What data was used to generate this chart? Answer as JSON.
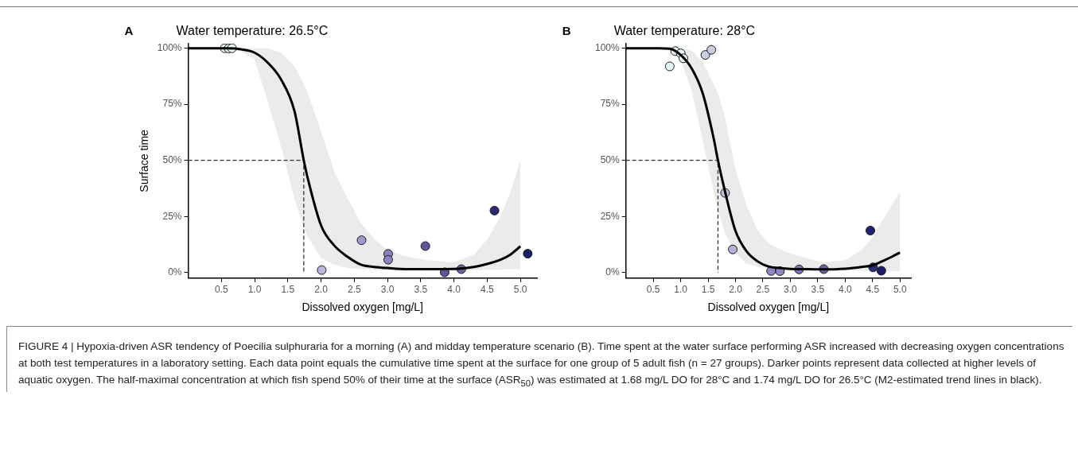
{
  "chart_data": [
    {
      "type": "scatter",
      "title": "Water temperature: 26.5°C",
      "xlabel": "Dissolved oxygen [mg/L]",
      "ylabel": "Surface time",
      "annotations": [
        "A",
        "FIGURE 4 | Hypoxia-driven ASR tendency of Poecilia sulphuraria for a morning (A) and midday temperature scenario (B). Time spent at the water surface performing ASR increased with decreasing oxygen concentrations at both test temperatures in a laboratory setting. Each data point equals the cumulative time spent at the surface for one group of 5 adult fish (n = 27 groups). Darker points represent data collected at higher levels of aquatic oxygen. The half-maximal concentration at which fish spend 50% of their time at the surface (ASR$_{50}$) was estimated at 1.68 mg/L DO for 28°C and 1.74 mg/L DO for 26.5°C (M2-estimated trend lines in black)."
      ],
      "xlim": [
        0,
        5.25
      ],
      "xticks": [
        0.5,
        {
          "value": 1,
          "label": "1.0"
        },
        1.5,
        {
          "value": 2,
          "label": "2.0"
        },
        2.5,
        {
          "value": 3,
          "label": "3.0"
        },
        3.5,
        {
          "value": 4,
          "label": "4.0"
        },
        4.5,
        {
          "value": 5,
          "label": "5.0"
        }
      ],
      "ylim": [
        -2.5,
        102
      ],
      "yticks": [
        {
          "value": 0,
          "label": "0%"
        },
        {
          "value": 25,
          "label": "25%"
        },
        {
          "value": 50,
          "label": "50%"
        },
        {
          "value": 75,
          "label": "75%"
        },
        {
          "value": 100,
          "label": "100%"
        }
      ],
      "grid": false,
      "legend": false,
      "marker": "circle",
      "series": [
        {
          "type": "line",
          "color": "#000000",
          "marker": "none",
          "x": [
            0,
            0.3,
            0.6,
            0.8,
            1,
            1.2,
            1.4,
            1.6,
            1.74,
            1.8,
            2,
            2.2,
            2.4,
            2.6,
            2.8,
            3,
            3.3,
            3.6,
            4,
            4.3,
            4.5,
            4.7,
            4.85,
            5
          ],
          "values": [
            100,
            100,
            100,
            99.5,
            98,
            93.5,
            86,
            72,
            50,
            42,
            21,
            12,
            7,
            3.5,
            2.5,
            2,
            1.5,
            1.5,
            1.6,
            2.5,
            3.8,
            5.7,
            8,
            11.7
          ],
          "lower": [
            100,
            100,
            100,
            98.5,
            95,
            76,
            56,
            33,
            20,
            16,
            6.5,
            3.5,
            2,
            1.5,
            1.2,
            1,
            1,
            1,
            1,
            1.1,
            1.2,
            1.3,
            1.4,
            1.5
          ],
          "upper": [
            100,
            100,
            100,
            100,
            100,
            100,
            98,
            92,
            84,
            80,
            63,
            45,
            33,
            22,
            15,
            10,
            7,
            5.5,
            4.5,
            8,
            14.7,
            25,
            36,
            50
          ]
        },
        {
          "type": "line",
          "color": "#333333",
          "marker": "none",
          "line_style": "dashed",
          "x": [
            0,
            1.74,
            1.74
          ],
          "values": [
            50,
            50,
            0
          ]
        },
        {
          "type": "scatter",
          "x": [
            0.55,
            0.61,
            0.66,
            2.01,
            2.61,
            3.01,
            3.01,
            3.57,
            3.86,
            4.11,
            4.61,
            5.11
          ],
          "values": [
            100,
            99.9,
            100,
            1.1,
            14.4,
            8.3,
            5.7,
            11.8,
            0.1,
            1.5,
            27.6,
            8.4
          ],
          "colors": [
            "#e6f5f7",
            "#e6f5f7",
            "#e6f5f7",
            "#b9b7dc",
            "#9e98cb",
            "#8a83bf",
            "#8a83bf",
            "#5f5799",
            "#5f5799",
            "#6a63a8",
            "#2b2a78",
            "#1c1f66"
          ]
        }
      ]
    },
    {
      "type": "scatter",
      "title": "Water temperature: 28°C",
      "xlabel": "Dissolved oxygen [mg/L]",
      "annotations": [
        "B"
      ],
      "xlim": [
        0,
        5.2
      ],
      "xticks": [
        0.5,
        {
          "value": 1,
          "label": "1.0"
        },
        1.5,
        {
          "value": 2,
          "label": "2.0"
        },
        2.5,
        {
          "value": 3,
          "label": "3.0"
        },
        3.5,
        {
          "value": 4,
          "label": "4.0"
        },
        4.5,
        {
          "value": 5,
          "label": "5.0"
        }
      ],
      "ylim": [
        -2.5,
        102
      ],
      "yticks": [
        {
          "value": 0,
          "label": "0%"
        },
        {
          "value": 25,
          "label": "25%"
        },
        {
          "value": 50,
          "label": "50%"
        },
        {
          "value": 75,
          "label": "75%"
        },
        {
          "value": 100,
          "label": "100%"
        }
      ],
      "grid": false,
      "legend": false,
      "marker": "circle",
      "series": [
        {
          "type": "line",
          "color": "#000000",
          "marker": "none",
          "x": [
            0,
            0.3,
            0.6,
            0.8,
            1,
            1.2,
            1.4,
            1.6,
            1.68,
            1.8,
            2,
            2.2,
            2.4,
            2.6,
            2.8,
            3,
            3.3,
            3.6,
            4,
            4.3,
            4.5,
            4.7,
            4.85,
            5
          ],
          "values": [
            100,
            100,
            100,
            99.8,
            97,
            91,
            80,
            60,
            50,
            37,
            18.5,
            9.5,
            5,
            2.7,
            2,
            1.6,
            1.5,
            1.4,
            1.7,
            2.5,
            3.2,
            5.3,
            7,
            8.9
          ],
          "lower": [
            100,
            100,
            100,
            99.5,
            95,
            81,
            59,
            36,
            28,
            18,
            8.5,
            4,
            2.5,
            1.8,
            1.3,
            1,
            1,
            1,
            0.9,
            0.8,
            0.7,
            0.6,
            0.6,
            0.5
          ],
          "upper": [
            100,
            100,
            100,
            100,
            100,
            99,
            94,
            84,
            80,
            70,
            46,
            30,
            19,
            13,
            10.5,
            8.5,
            6.5,
            4.5,
            5.5,
            10,
            15.8,
            24,
            30,
            36
          ]
        },
        {
          "type": "line",
          "color": "#333333",
          "marker": "none",
          "line_style": "dashed",
          "x": [
            0,
            1.68,
            1.68
          ],
          "values": [
            50,
            50,
            0
          ]
        },
        {
          "type": "scatter",
          "x": [
            0.8,
            0.9,
            1,
            1.05,
            1.45,
            1.56,
            1.81,
            1.95,
            2.65,
            2.81,
            3.16,
            3.61,
            4.46,
            4.51,
            4.66
          ],
          "values": [
            91.9,
            98.7,
            97.7,
            95.5,
            97,
            99.3,
            35.5,
            10.3,
            0.7,
            0.6,
            1.4,
            1.5,
            18.7,
            2.3,
            0.8
          ],
          "colors": [
            "#e6f5f7",
            "#e6f5f7",
            "#e6f5f7",
            "#e6f5f7",
            "#c9cde3",
            "#c9cde3",
            "#c0c2e0",
            "#b2b0d8",
            "#8f88c4",
            "#8f88c4",
            "#7a72b4",
            "#6a63a8",
            "#1f2270",
            "#2b2a78",
            "#1c1f66"
          ]
        }
      ]
    }
  ]
}
